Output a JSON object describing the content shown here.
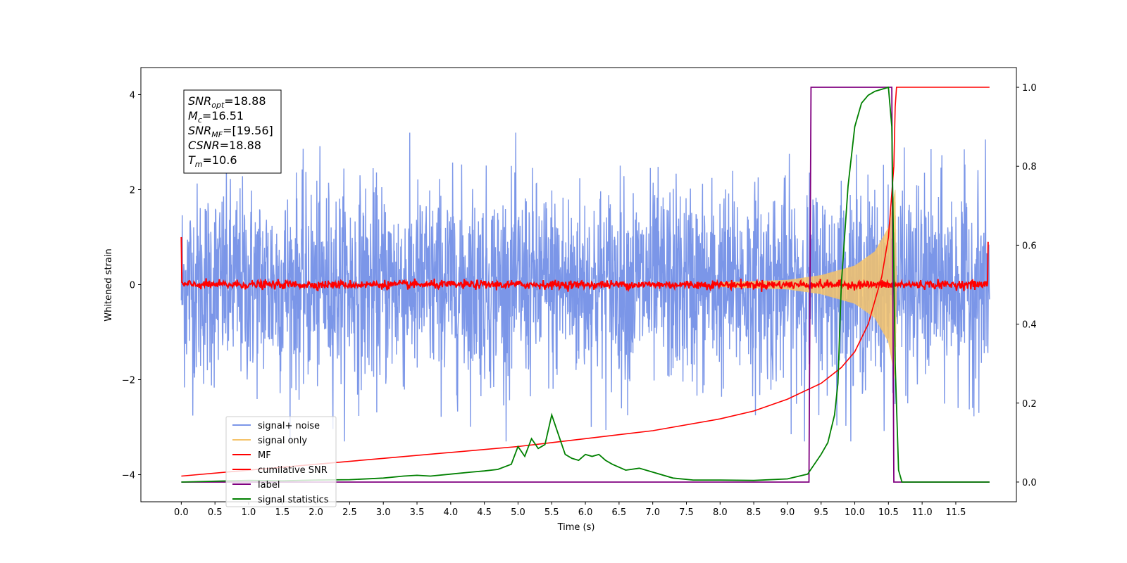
{
  "chart_data": {
    "type": "line",
    "xlabel": "Time (s)",
    "ylabel": "Whitened strain",
    "xlim": [
      -0.6,
      12.4
    ],
    "ylim_left": [
      -4.57,
      4.57
    ],
    "ylim_right": [
      -0.05,
      1.05
    ],
    "xticks": [
      "0.0",
      "0.5",
      "1.0",
      "1.5",
      "2.0",
      "2.5",
      "3.0",
      "3.5",
      "4.0",
      "4.5",
      "5.0",
      "5.5",
      "6.0",
      "6.5",
      "7.0",
      "7.5",
      "8.0",
      "8.5",
      "9.0",
      "9.5",
      "10.0",
      "10.5",
      "11.0",
      "11.5"
    ],
    "yticks_left": [
      "-4",
      "-2",
      "0",
      "2",
      "4"
    ],
    "yticks_right": [
      "0.0",
      "0.2",
      "0.4",
      "0.6",
      "0.8",
      "1.0"
    ],
    "grid": false,
    "legend_position": "lower-left",
    "series": [
      {
        "name": "signal+ noise",
        "axis": "left",
        "color": "#7b96e8",
        "approx_amplitude": 3.0,
        "x_range": [
          0.0,
          12.0
        ]
      },
      {
        "name": "signal only",
        "axis": "left",
        "color": "#f5c36a",
        "envelope": [
          [
            8.0,
            0.05
          ],
          [
            9.0,
            0.1
          ],
          [
            9.5,
            0.2
          ],
          [
            10.0,
            0.4
          ],
          [
            10.3,
            0.7
          ],
          [
            10.5,
            1.2
          ],
          [
            10.6,
            2.0
          ],
          [
            10.62,
            0.0
          ]
        ]
      },
      {
        "name": "MF",
        "axis": "left",
        "color": "#ff0000",
        "approx_amplitude": 0.15,
        "edge_spikes": [
          [
            0.0,
            1.0
          ],
          [
            11.98,
            0.9
          ]
        ]
      },
      {
        "name": "cumilative SNR",
        "axis": "right",
        "color": "#ff0000",
        "x": [
          0.0,
          1.0,
          2.0,
          3.0,
          4.0,
          5.0,
          6.0,
          7.0,
          8.0,
          8.5,
          9.0,
          9.5,
          9.8,
          10.0,
          10.2,
          10.4,
          10.5,
          10.58,
          10.6,
          10.62,
          12.0
        ],
        "y": [
          0.015,
          0.03,
          0.045,
          0.06,
          0.075,
          0.09,
          0.11,
          0.13,
          0.16,
          0.18,
          0.21,
          0.25,
          0.29,
          0.33,
          0.4,
          0.52,
          0.62,
          0.8,
          0.95,
          1.0,
          1.0
        ]
      },
      {
        "name": "label",
        "axis": "right",
        "color": "#800080",
        "x": [
          0.0,
          9.32,
          9.35,
          10.55,
          10.58,
          12.0
        ],
        "y": [
          0.0,
          0.0,
          1.0,
          1.0,
          0.0,
          0.0
        ]
      },
      {
        "name": "signal statistics",
        "axis": "right",
        "color": "#008000",
        "x": [
          0.0,
          0.5,
          1.0,
          1.5,
          2.0,
          2.5,
          3.0,
          3.3,
          3.5,
          3.7,
          4.0,
          4.3,
          4.5,
          4.7,
          4.9,
          5.0,
          5.1,
          5.2,
          5.3,
          5.4,
          5.5,
          5.6,
          5.7,
          5.8,
          5.9,
          6.0,
          6.1,
          6.2,
          6.3,
          6.4,
          6.6,
          6.8,
          7.0,
          7.3,
          7.6,
          8.0,
          8.5,
          9.0,
          9.3,
          9.5,
          9.6,
          9.7,
          9.75,
          9.8,
          9.9,
          10.0,
          10.1,
          10.2,
          10.3,
          10.4,
          10.5,
          10.55,
          10.6,
          10.65,
          10.7,
          12.0
        ],
        "y": [
          0.0,
          0.002,
          0.004,
          0.003,
          0.005,
          0.006,
          0.01,
          0.015,
          0.017,
          0.015,
          0.02,
          0.025,
          0.028,
          0.032,
          0.045,
          0.09,
          0.065,
          0.11,
          0.085,
          0.095,
          0.17,
          0.12,
          0.07,
          0.06,
          0.055,
          0.07,
          0.065,
          0.07,
          0.055,
          0.045,
          0.03,
          0.035,
          0.025,
          0.01,
          0.005,
          0.005,
          0.004,
          0.008,
          0.02,
          0.07,
          0.1,
          0.17,
          0.25,
          0.5,
          0.75,
          0.9,
          0.96,
          0.98,
          0.99,
          0.995,
          1.0,
          0.9,
          0.3,
          0.03,
          0.0,
          0.0
        ]
      }
    ],
    "info_box": {
      "lines": [
        {
          "label": "SNR",
          "sub": "opt",
          "value": "=18.88"
        },
        {
          "label": "M",
          "sub": "c",
          "value": "=16.51"
        },
        {
          "label": "SNR",
          "sub": "MF",
          "value": "=[19.56]"
        },
        {
          "label": "CSNR",
          "sub": "",
          "value": "=18.88"
        },
        {
          "label": "T",
          "sub": "m",
          "value": "=10.6"
        }
      ]
    }
  }
}
